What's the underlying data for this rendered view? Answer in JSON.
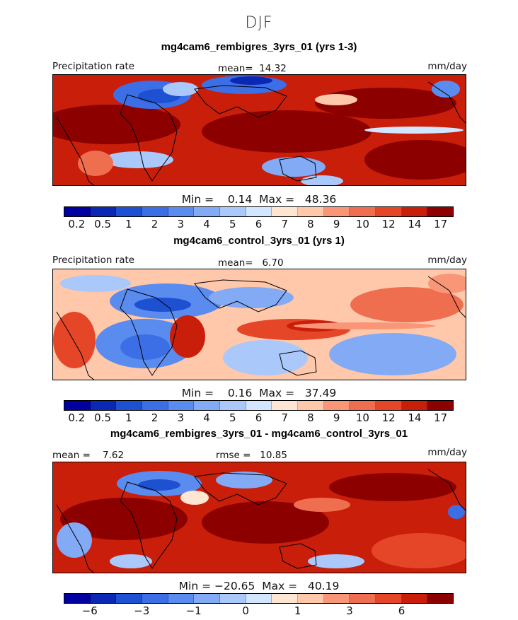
{
  "season": "DJF",
  "colors": {
    "scale": [
      "#0000a0",
      "#0a28b4",
      "#1e50d2",
      "#3c6ee6",
      "#5a8cf0",
      "#82aaf5",
      "#aac8fa",
      "#d2e6ff",
      "#ffe6d2",
      "#ffc8aa",
      "#fa9678",
      "#f06e50",
      "#e64628",
      "#c81e0a",
      "#8c0000"
    ],
    "land_outline": "#000000"
  },
  "panels": [
    {
      "title": "mg4cam6_rembigres_3yrs_01 (yrs 1-3)",
      "left_label": "Precipitation rate",
      "center_label": "mean=  14.32",
      "right_label": "mm/day",
      "minmax": "Min =    0.14  Max =   48.36",
      "ticks": [
        "0.2",
        "0.5",
        "1",
        "2",
        "3",
        "4",
        "5",
        "6",
        "7",
        "8",
        "9",
        "10",
        "12",
        "14",
        "17"
      ]
    },
    {
      "title": "mg4cam6_control_3yrs_01 (yrs 1)",
      "left_label": "Precipitation rate",
      "center_label": "mean=   6.70",
      "right_label": "mm/day",
      "minmax": "Min =    0.16  Max =   37.49",
      "ticks": [
        "0.2",
        "0.5",
        "1",
        "2",
        "3",
        "4",
        "5",
        "6",
        "7",
        "8",
        "9",
        "10",
        "12",
        "14",
        "17"
      ]
    },
    {
      "title": "mg4cam6_rembigres_3yrs_01 - mg4cam6_control_3yrs_01",
      "left_label": "mean =    7.62",
      "center_label": "rmse =   10.85",
      "right_label": "mm/day",
      "minmax": "Min = −20.65  Max =   40.19",
      "ticks": [
        "−6",
        "−3",
        "−1",
        "0",
        "1",
        "3",
        "6"
      ]
    }
  ],
  "chart_data": [
    {
      "type": "heatmap",
      "title": "mg4cam6_rembigres_3yrs_01 (yrs 1-3)",
      "variable": "Precipitation rate",
      "units": "mm/day",
      "mean": 14.32,
      "min": 0.14,
      "max": 48.36,
      "colorbar_levels": [
        0.2,
        0.5,
        1,
        2,
        3,
        4,
        5,
        6,
        7,
        8,
        9,
        10,
        12,
        14,
        17
      ]
    },
    {
      "type": "heatmap",
      "title": "mg4cam6_control_3yrs_01 (yrs 1)",
      "variable": "Precipitation rate",
      "units": "mm/day",
      "mean": 6.7,
      "min": 0.16,
      "max": 37.49,
      "colorbar_levels": [
        0.2,
        0.5,
        1,
        2,
        3,
        4,
        5,
        6,
        7,
        8,
        9,
        10,
        12,
        14,
        17
      ]
    },
    {
      "type": "heatmap",
      "title": "mg4cam6_rembigres_3yrs_01 - mg4cam6_control_3yrs_01",
      "units": "mm/day",
      "mean": 7.62,
      "rmse": 10.85,
      "min": -20.65,
      "max": 40.19,
      "colorbar_ticks": [
        -6,
        -3,
        -1,
        0,
        1,
        3,
        6
      ]
    }
  ]
}
